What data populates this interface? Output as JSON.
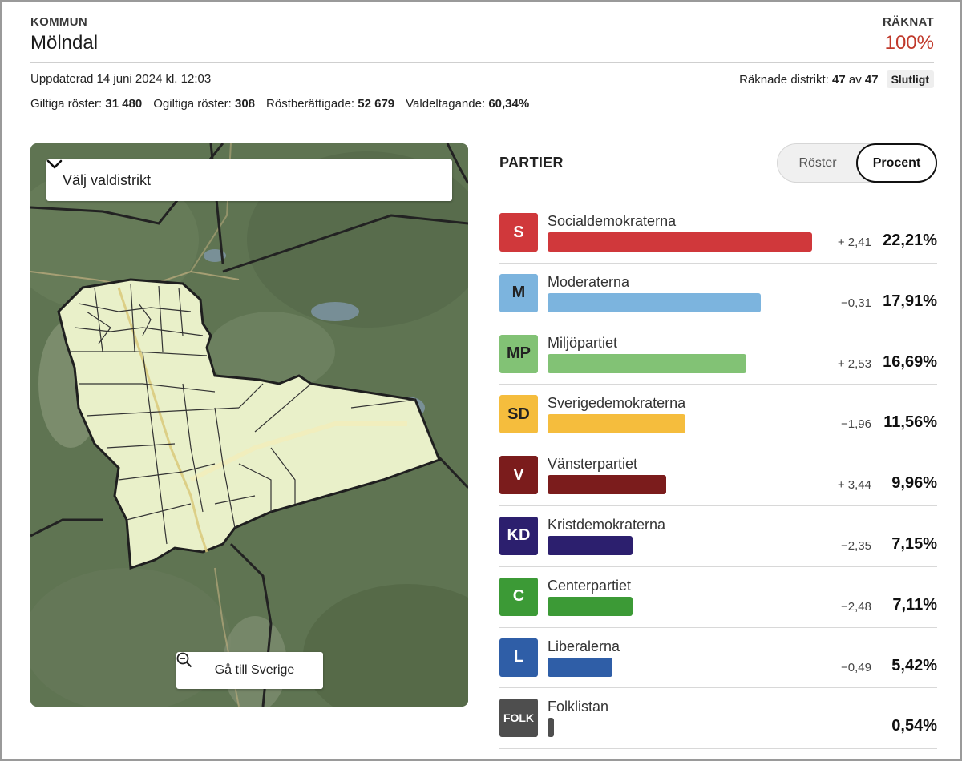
{
  "header": {
    "label": "KOMMUN",
    "name": "Mölndal",
    "counted_label": "RÄKNAT",
    "counted_value": "100%"
  },
  "meta": {
    "updated": "Uppdaterad 14 juni 2024 kl. 12:03",
    "districts_label": "Räknade distrikt:",
    "districts_counted": "47",
    "districts_of": "av",
    "districts_total": "47",
    "status_badge": "Slutligt"
  },
  "stats": [
    {
      "label": "Giltiga röster:",
      "value": "31 480"
    },
    {
      "label": "Ogiltiga röster:",
      "value": "308"
    },
    {
      "label": "Röstberättigade:",
      "value": "52 679"
    },
    {
      "label": "Valdeltagande:",
      "value": "60,34%"
    }
  ],
  "map": {
    "select_label": "Välj valdistrikt",
    "select_icon": "chevron-down-icon",
    "zoom_button_label": "Gå till Sverige",
    "zoom_button_icon": "zoom-out-icon",
    "region_fill": "#e9f0c9",
    "terrain_color": "#5d7350"
  },
  "parties_panel": {
    "title": "PARTIER",
    "toggle": {
      "votes_label": "Röster",
      "percent_label": "Procent",
      "selected": "percent"
    }
  },
  "chart_data": {
    "type": "bar",
    "scale_max_percent": 22.21,
    "categories": [
      "Socialdemokraterna",
      "Moderaterna",
      "Miljöpartiet",
      "Sverigedemokraterna",
      "Vänsterpartiet",
      "Kristdemokraterna",
      "Centerpartiet",
      "Liberalerna",
      "Folklistan"
    ],
    "parties": [
      {
        "abbr": "S",
        "name": "Socialdemokraterna",
        "percent": 22.21,
        "percent_label": "22,21%",
        "diff_label": "+ 2,41",
        "color": "#d0383b"
      },
      {
        "abbr": "M",
        "name": "Moderaterna",
        "percent": 17.91,
        "percent_label": "17,91%",
        "diff_label": "−0,31",
        "color": "#7cb4de"
      },
      {
        "abbr": "MP",
        "name": "Miljöpartiet",
        "percent": 16.69,
        "percent_label": "16,69%",
        "diff_label": "+ 2,53",
        "color": "#82c275"
      },
      {
        "abbr": "SD",
        "name": "Sverigedemokraterna",
        "percent": 11.56,
        "percent_label": "11,56%",
        "diff_label": "−1,96",
        "color": "#f5bd3d"
      },
      {
        "abbr": "V",
        "name": "Vänsterpartiet",
        "percent": 9.96,
        "percent_label": "9,96%",
        "diff_label": "+ 3,44",
        "color": "#7b1c1c"
      },
      {
        "abbr": "KD",
        "name": "Kristdemokraterna",
        "percent": 7.15,
        "percent_label": "7,15%",
        "diff_label": "−2,35",
        "color": "#2c1f6e"
      },
      {
        "abbr": "C",
        "name": "Centerpartiet",
        "percent": 7.11,
        "percent_label": "7,11%",
        "diff_label": "−2,48",
        "color": "#3c9a36"
      },
      {
        "abbr": "L",
        "name": "Liberalerna",
        "percent": 5.42,
        "percent_label": "5,42%",
        "diff_label": "−0,49",
        "color": "#2f5ea7"
      },
      {
        "abbr": "FOLK",
        "name": "Folklistan",
        "percent": 0.54,
        "percent_label": "0,54%",
        "diff_label": "",
        "color": "#4e4e4e"
      }
    ]
  }
}
